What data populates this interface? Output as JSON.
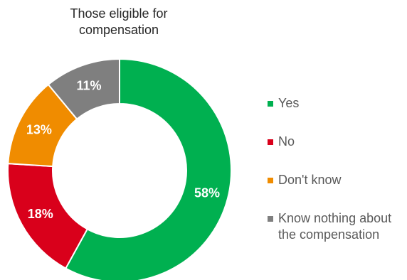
{
  "chart_data": {
    "type": "pie",
    "donut": true,
    "title_lines": [
      "Those eligible for",
      "compensation"
    ],
    "categories": [
      "Yes",
      "No",
      "Don't know",
      "Know nothing about the compensation"
    ],
    "legend_lines": [
      [
        "Yes"
      ],
      [
        "No"
      ],
      [
        "Don't know"
      ],
      [
        "Know nothing about",
        "the compensation"
      ]
    ],
    "values": [
      58,
      18,
      13,
      11
    ],
    "data_labels": [
      "58%",
      "18%",
      "13%",
      "11%"
    ],
    "colors": [
      "#00b050",
      "#d9001b",
      "#f08c00",
      "#7f7f7f"
    ],
    "legend_position": "right"
  }
}
